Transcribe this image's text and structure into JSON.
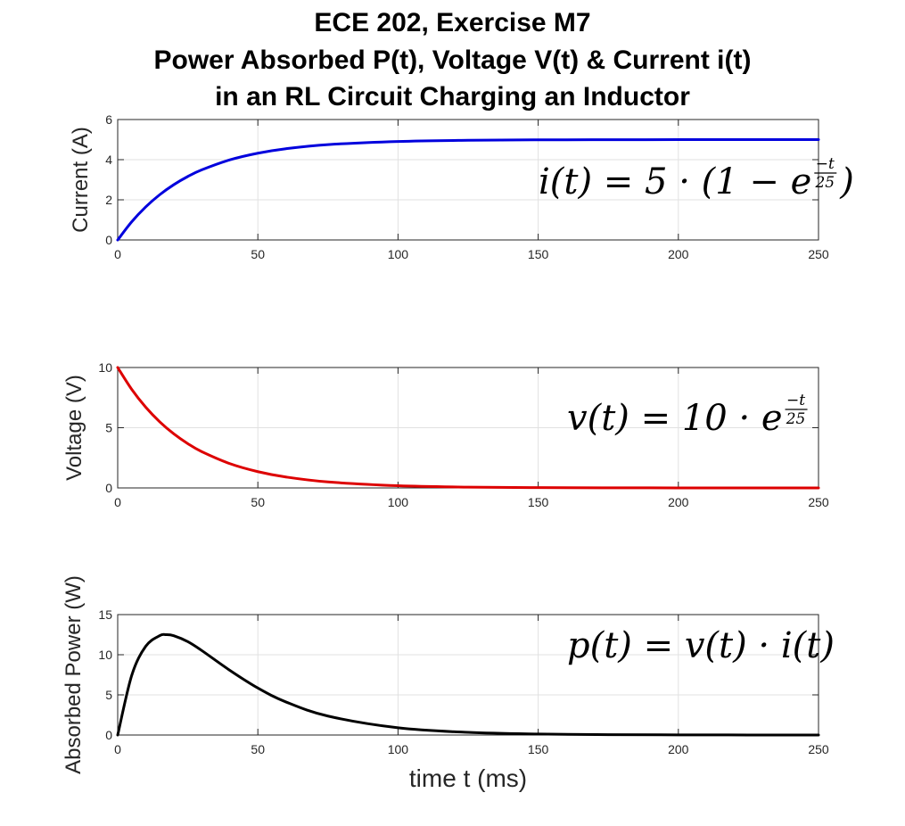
{
  "figure": {
    "title_lines": [
      "ECE 202, Exercise M7",
      "Power Absorbed P(t), Voltage V(t) & Current i(t)",
      "in an RL Circuit Charging an Inductor"
    ],
    "shared_xlabel": "time t (ms)"
  },
  "chart_data": [
    {
      "type": "line",
      "ylabel": "Current (A)",
      "xlim": [
        0,
        250
      ],
      "ylim": [
        0,
        6
      ],
      "xticks": [
        0,
        50,
        100,
        150,
        200,
        250
      ],
      "yticks": [
        0,
        2,
        4,
        6
      ],
      "grid": true,
      "color": "#0000dd",
      "annotation": {
        "lhs": "i(t) = 5 · (1 − e",
        "exp_num": "−t",
        "exp_den": "25",
        "rhs": ")"
      },
      "series": [
        {
          "x": [
            0,
            5,
            10,
            15,
            20,
            25,
            30,
            40,
            50,
            60,
            75,
            100,
            125,
            150,
            175,
            200,
            225,
            250
          ],
          "values": [
            0,
            0.906,
            1.648,
            2.256,
            2.753,
            3.161,
            3.494,
            3.991,
            4.323,
            4.546,
            4.751,
            4.908,
            4.966,
            4.988,
            4.995,
            4.998,
            4.999,
            5.0
          ]
        }
      ]
    },
    {
      "type": "line",
      "ylabel": "Voltage (V)",
      "xlim": [
        0,
        250
      ],
      "ylim": [
        0,
        10
      ],
      "xticks": [
        0,
        50,
        100,
        150,
        200,
        250
      ],
      "yticks": [
        0,
        5,
        10
      ],
      "grid": true,
      "color": "#dd0000",
      "annotation": {
        "lhs": "v(t) = 10 · e",
        "exp_num": "−t",
        "exp_den": "25",
        "rhs": ""
      },
      "series": [
        {
          "x": [
            0,
            5,
            10,
            15,
            20,
            25,
            30,
            40,
            50,
            60,
            75,
            100,
            125,
            150,
            175,
            200,
            225,
            250
          ],
          "values": [
            10,
            8.187,
            6.703,
            5.488,
            4.493,
            3.679,
            3.012,
            2.019,
            1.353,
            0.907,
            0.498,
            0.183,
            0.067,
            0.025,
            0.009,
            0.003,
            0.001,
            0.0005
          ]
        }
      ]
    },
    {
      "type": "line",
      "ylabel": "Absorbed Power (W)",
      "xlabel": "time t (ms)",
      "xlim": [
        0,
        250
      ],
      "ylim": [
        0,
        15
      ],
      "xticks": [
        0,
        50,
        100,
        150,
        200,
        250
      ],
      "yticks": [
        0,
        5,
        10,
        15
      ],
      "grid": true,
      "color": "#000000",
      "annotation": {
        "lhs": "p(t) = v(t) · i(t)",
        "exp_num": "",
        "exp_den": "",
        "rhs": ""
      },
      "series": [
        {
          "x": [
            0,
            5,
            10,
            15,
            17.3,
            20,
            25,
            30,
            40,
            50,
            60,
            75,
            100,
            125,
            150,
            175,
            200,
            225,
            250
          ],
          "values": [
            0,
            7.42,
            11.05,
            12.38,
            12.5,
            12.37,
            11.63,
            10.52,
            8.06,
            5.85,
            4.12,
            2.36,
            0.9,
            0.33,
            0.12,
            0.045,
            0.017,
            0.006,
            0.002
          ]
        }
      ]
    }
  ]
}
